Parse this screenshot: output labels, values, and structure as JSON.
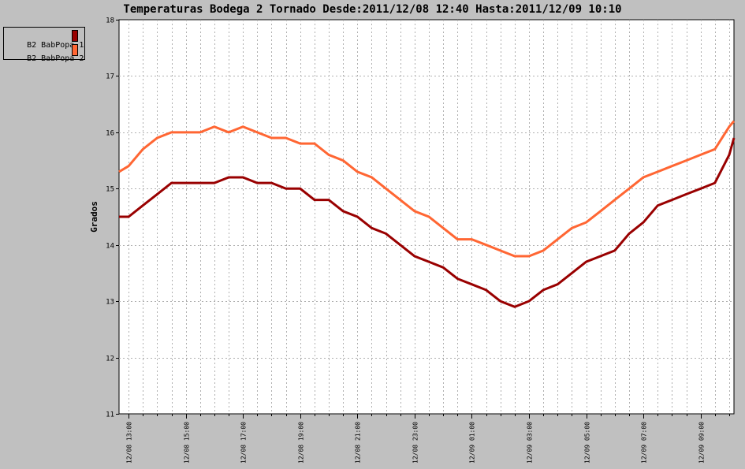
{
  "chart_data": {
    "type": "line",
    "title": "Temperaturas Bodega 2 Tornado Desde:2011/12/08 12:40 Hasta:2011/12/09 10:10",
    "ylabel": "Grados",
    "xlabel": "",
    "ylim": [
      11,
      18
    ],
    "yticks": [
      11,
      12,
      13,
      14,
      15,
      16,
      17,
      18
    ],
    "xlim": [
      "2011/12/08 12:40",
      "2011/12/09 10:10"
    ],
    "xticks": [
      "12/08 13:00",
      "12/08 15:00",
      "12/08 17:00",
      "12/08 19:00",
      "12/08 21:00",
      "12/08 23:00",
      "12/09 01:00",
      "12/09 03:00",
      "12/09 05:00",
      "12/09 07:00",
      "12/09 09:00"
    ],
    "grid": true,
    "legend_position": "top-left",
    "series": [
      {
        "name": "B2 BabPopa 1",
        "color": "#990000",
        "x": [
          "2011/12/08 12:40",
          "2011/12/08 13:00",
          "2011/12/08 13:30",
          "2011/12/08 14:00",
          "2011/12/08 14:30",
          "2011/12/08 15:00",
          "2011/12/08 15:30",
          "2011/12/08 16:00",
          "2011/12/08 16:30",
          "2011/12/08 17:00",
          "2011/12/08 17:30",
          "2011/12/08 18:00",
          "2011/12/08 18:30",
          "2011/12/08 19:00",
          "2011/12/08 19:30",
          "2011/12/08 20:00",
          "2011/12/08 20:30",
          "2011/12/08 21:00",
          "2011/12/08 21:30",
          "2011/12/08 22:00",
          "2011/12/08 22:30",
          "2011/12/08 23:00",
          "2011/12/08 23:30",
          "2011/12/09 00:00",
          "2011/12/09 00:30",
          "2011/12/09 01:00",
          "2011/12/09 01:30",
          "2011/12/09 02:00",
          "2011/12/09 02:30",
          "2011/12/09 03:00",
          "2011/12/09 03:30",
          "2011/12/09 04:00",
          "2011/12/09 04:30",
          "2011/12/09 05:00",
          "2011/12/09 05:30",
          "2011/12/09 06:00",
          "2011/12/09 06:30",
          "2011/12/09 07:00",
          "2011/12/09 07:30",
          "2011/12/09 08:00",
          "2011/12/09 08:30",
          "2011/12/09 09:00",
          "2011/12/09 09:30",
          "2011/12/09 10:00",
          "2011/12/09 10:10"
        ],
        "y": [
          14.5,
          14.5,
          14.7,
          14.9,
          15.1,
          15.1,
          15.1,
          15.1,
          15.2,
          15.2,
          15.1,
          15.1,
          15.0,
          15.0,
          14.8,
          14.8,
          14.6,
          14.5,
          14.3,
          14.2,
          14.0,
          13.8,
          13.7,
          13.6,
          13.4,
          13.3,
          13.2,
          13.0,
          12.9,
          13.0,
          13.2,
          13.3,
          13.5,
          13.7,
          13.8,
          13.9,
          14.2,
          14.4,
          14.7,
          14.8,
          14.9,
          15.0,
          15.1,
          15.6,
          15.9
        ]
      },
      {
        "name": "B2 BabPopa 2",
        "color": "#ff6633",
        "x": [
          "2011/12/08 12:40",
          "2011/12/08 13:00",
          "2011/12/08 13:30",
          "2011/12/08 14:00",
          "2011/12/08 14:30",
          "2011/12/08 15:00",
          "2011/12/08 15:30",
          "2011/12/08 16:00",
          "2011/12/08 16:30",
          "2011/12/08 17:00",
          "2011/12/08 17:30",
          "2011/12/08 18:00",
          "2011/12/08 18:30",
          "2011/12/08 19:00",
          "2011/12/08 19:30",
          "2011/12/08 20:00",
          "2011/12/08 20:30",
          "2011/12/08 21:00",
          "2011/12/08 21:30",
          "2011/12/08 22:00",
          "2011/12/08 22:30",
          "2011/12/08 23:00",
          "2011/12/08 23:30",
          "2011/12/09 00:00",
          "2011/12/09 00:30",
          "2011/12/09 01:00",
          "2011/12/09 01:30",
          "2011/12/09 02:00",
          "2011/12/09 02:30",
          "2011/12/09 03:00",
          "2011/12/09 03:30",
          "2011/12/09 04:00",
          "2011/12/09 04:30",
          "2011/12/09 05:00",
          "2011/12/09 05:30",
          "2011/12/09 06:00",
          "2011/12/09 06:30",
          "2011/12/09 07:00",
          "2011/12/09 07:30",
          "2011/12/09 08:00",
          "2011/12/09 08:30",
          "2011/12/09 09:00",
          "2011/12/09 09:30",
          "2011/12/09 10:00",
          "2011/12/09 10:10"
        ],
        "y": [
          15.3,
          15.4,
          15.7,
          15.9,
          16.0,
          16.0,
          16.0,
          16.1,
          16.0,
          16.1,
          16.0,
          15.9,
          15.9,
          15.8,
          15.8,
          15.6,
          15.5,
          15.3,
          15.2,
          15.0,
          14.8,
          14.6,
          14.5,
          14.3,
          14.1,
          14.1,
          14.0,
          13.9,
          13.8,
          13.8,
          13.9,
          14.1,
          14.3,
          14.4,
          14.6,
          14.8,
          15.0,
          15.2,
          15.3,
          15.4,
          15.5,
          15.6,
          15.7,
          16.1,
          16.2
        ]
      }
    ]
  }
}
